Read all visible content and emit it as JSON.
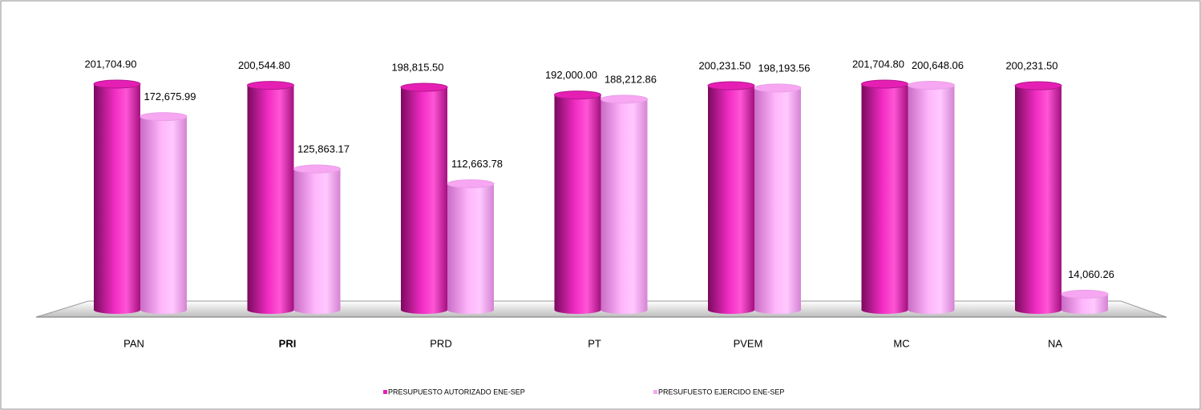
{
  "chart_data": {
    "type": "bar",
    "categories": [
      "PAN",
      "PRI",
      "PRD",
      "PT",
      "PVEM",
      "MC",
      "NA"
    ],
    "series": [
      {
        "name": "PRESUPUESTO AUTORIZADO ENE-SEP",
        "color": "#e61fb4",
        "values": [
          201704.9,
          200544.8,
          198815.5,
          192000.0,
          200231.5,
          201704.8,
          200231.5
        ],
        "value_labels": [
          "201,704.90",
          "200,544.80",
          "198,815.50",
          "192,000.00",
          "200,231.50",
          "201,704.80",
          "200,231.50"
        ]
      },
      {
        "name": "PRESUFUESTO EJERCIDO ENE-SEP",
        "color": "#f7a6f2",
        "values": [
          172675.99,
          125863.17,
          112663.78,
          188212.86,
          198193.56,
          200648.06,
          14060.26
        ],
        "value_labels": [
          "172,675.99",
          "125,863.17",
          "112,663.78",
          "188,212.86",
          "198,193.56",
          "200,648.06",
          "14,060.26"
        ]
      }
    ]
  }
}
